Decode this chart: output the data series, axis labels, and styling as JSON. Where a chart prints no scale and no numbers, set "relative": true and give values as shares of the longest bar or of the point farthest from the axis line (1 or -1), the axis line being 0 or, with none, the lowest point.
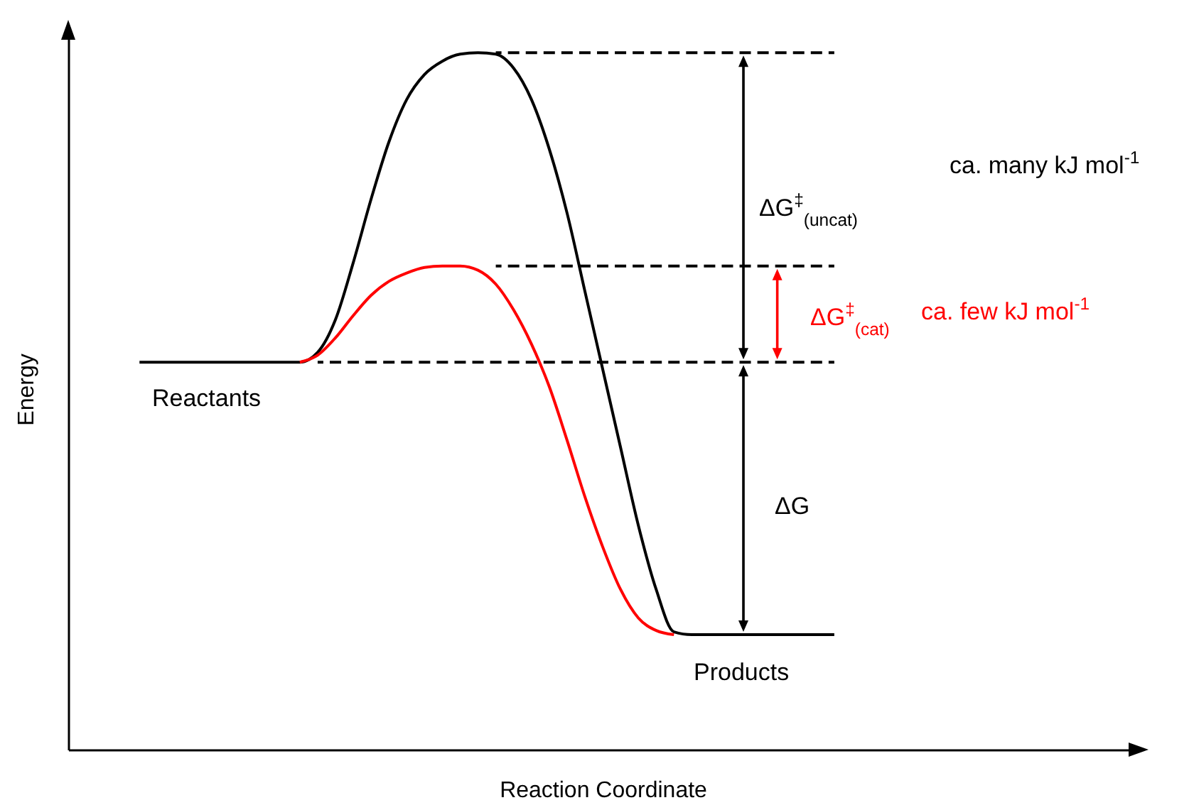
{
  "chart_data": {
    "type": "line",
    "relative": true,
    "tick_labels": false,
    "xlabel": "Reaction Coordinate",
    "ylabel": "Energy",
    "categories": [
      null,
      null,
      null,
      null,
      null,
      null,
      null,
      null,
      null,
      null,
      null,
      null,
      null,
      null,
      null,
      null,
      null,
      null,
      null,
      null,
      null,
      null,
      null,
      null,
      null,
      null,
      null,
      null,
      null,
      null,
      null,
      null,
      null,
      null,
      null,
      null,
      null,
      null,
      null,
      null,
      null,
      null,
      null,
      null,
      null,
      null,
      null,
      null,
      null,
      null,
      null,
      null,
      null,
      null,
      null,
      null,
      null,
      null,
      null,
      null,
      null
    ],
    "series": [
      {
        "color": "#000000",
        "values": [
          null,
          null,
          null,
          null,
          0.556,
          0.556,
          0.556,
          0.556,
          0.556,
          0.556,
          0.556,
          0.556,
          0.556,
          0.556,
          0.57,
          0.617,
          0.699,
          0.79,
          0.872,
          0.933,
          0.969,
          0.988,
          0.998,
          1,
          0.998,
          0.978,
          0.933,
          0.862,
          0.77,
          0.658,
          0.546,
          0.434,
          0.322,
          0.23,
          0.169,
          0.165,
          0.165,
          0.165,
          0.165,
          0.165,
          0.165,
          0.165,
          0.165,
          0.165,
          null,
          null,
          null,
          null,
          null,
          null,
          null,
          null,
          null,
          null,
          null,
          null,
          null,
          null,
          null,
          null,
          null
        ]
      },
      {
        "color": "#ff0000",
        "values": [
          null,
          null,
          null,
          null,
          null,
          null,
          null,
          null,
          null,
          null,
          null,
          null,
          null,
          0.556,
          0.566,
          0.591,
          0.623,
          0.652,
          0.672,
          0.684,
          0.692,
          0.694,
          0.694,
          0.688,
          0.668,
          0.631,
          0.582,
          0.521,
          0.444,
          0.363,
          0.291,
          0.23,
          0.189,
          0.171,
          0.165,
          null,
          null,
          null,
          null,
          null,
          null,
          null,
          null,
          null,
          null,
          null,
          null,
          null,
          null,
          null,
          null,
          null,
          null,
          null,
          null,
          null,
          null,
          null,
          null,
          null,
          null
        ]
      },
      {
        "color": "#000000",
        "line_style": "dashed",
        "values": [
          null,
          null,
          null,
          null,
          null,
          null,
          null,
          null,
          null,
          null,
          null,
          null,
          null,
          null,
          null,
          null,
          null,
          null,
          null,
          null,
          null,
          null,
          null,
          null,
          1,
          1,
          1,
          1,
          1,
          1,
          1,
          1,
          1,
          1,
          1,
          1,
          1,
          1,
          1,
          1,
          1,
          1,
          1,
          1,
          null,
          null,
          null,
          null,
          null,
          null,
          null,
          null,
          null,
          null,
          null,
          null,
          null,
          null,
          null,
          null,
          null
        ]
      },
      {
        "color": "#000000",
        "line_style": "dashed",
        "values": [
          null,
          null,
          null,
          null,
          null,
          null,
          null,
          null,
          null,
          null,
          null,
          null,
          null,
          null,
          null,
          null,
          null,
          null,
          null,
          null,
          null,
          null,
          null,
          null,
          0.694,
          0.694,
          0.694,
          0.694,
          0.694,
          0.694,
          0.694,
          0.694,
          0.694,
          0.694,
          0.694,
          0.694,
          0.694,
          0.694,
          0.694,
          0.694,
          0.694,
          0.694,
          0.694,
          0.694,
          null,
          null,
          null,
          null,
          null,
          null,
          null,
          null,
          null,
          null,
          null,
          null,
          null,
          null,
          null,
          null,
          null
        ]
      },
      {
        "color": "#000000",
        "line_style": "dashed",
        "values": [
          null,
          null,
          null,
          null,
          null,
          null,
          null,
          null,
          null,
          null,
          null,
          null,
          null,
          null,
          0.556,
          0.556,
          0.556,
          0.556,
          0.556,
          0.556,
          0.556,
          0.556,
          0.556,
          0.556,
          0.556,
          0.556,
          0.556,
          0.556,
          0.556,
          0.556,
          0.556,
          0.556,
          0.556,
          0.556,
          0.556,
          0.556,
          0.556,
          0.556,
          0.556,
          0.556,
          0.556,
          0.556,
          0.556,
          0.556,
          null,
          null,
          null,
          null,
          null,
          null,
          null,
          null,
          null,
          null,
          null,
          null,
          null,
          null,
          null,
          null,
          null
        ]
      }
    ],
    "annotations": [
      "ΔG$^{‡}$$_{(uncat)}$",
      "ca. many kJ mol$^{-1}$",
      "ΔG$^{‡}$$_{(cat)}$",
      "ca. few kJ mol$^{-1}$",
      "ΔG",
      "Reactants",
      "Products"
    ]
  }
}
